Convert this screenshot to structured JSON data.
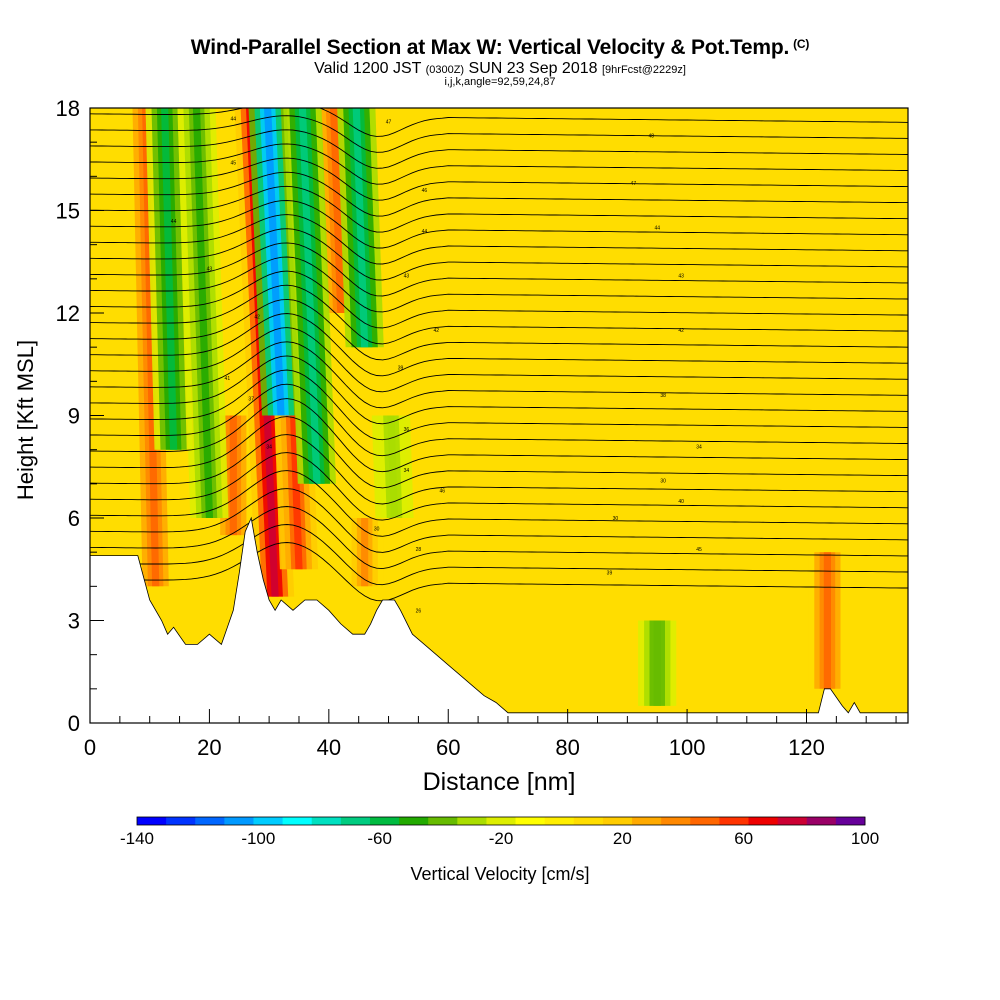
{
  "header": {
    "title": "Wind-Parallel Section at Max W: Vertical Velocity & Pot.Temp.",
    "copyright_mark": "(C)",
    "valid_prefix": "Valid 1200 JST",
    "valid_utc": "(0300Z)",
    "valid_date": "SUN 23 Sep 2018",
    "forecast_info": "[9hrFcst@2229z]",
    "indices": "i,j,k,angle=92,59,24,87"
  },
  "chart_data": {
    "type": "heatmap",
    "title": "Wind-Parallel Section at Max W: Vertical Velocity & Pot.Temp.",
    "xlabel": "Distance [nm]",
    "ylabel": "Height [Kft MSL]",
    "xlim": [
      0,
      137
    ],
    "ylim": [
      0,
      18
    ],
    "x_ticks": [
      0,
      20,
      40,
      60,
      80,
      100,
      120
    ],
    "x_tick_labels": [
      "0",
      "20",
      "40",
      "60",
      "80",
      "100",
      "120"
    ],
    "y_ticks": [
      0,
      3,
      6,
      9,
      12,
      15,
      18
    ],
    "y_tick_labels": [
      "0",
      "3",
      "6",
      "9",
      "12",
      "15",
      "18"
    ],
    "colorbar": {
      "label": "Vertical Velocity [cm/s]",
      "min": -140,
      "max": 100,
      "step": 10,
      "tick_labels": [
        "-140",
        "-100",
        "-60",
        "-20",
        "20",
        "60",
        "100"
      ],
      "colors": [
        "#0000ff",
        "#0033ff",
        "#0066ff",
        "#0099ff",
        "#00ccff",
        "#00ffff",
        "#00e0c0",
        "#00cc80",
        "#00bb40",
        "#22aa00",
        "#66bb00",
        "#aadd00",
        "#ddee00",
        "#ffff00",
        "#ffee00",
        "#ffdd00",
        "#ffcc00",
        "#ffaa00",
        "#ff8800",
        "#ff6600",
        "#ff3300",
        "#ee0000",
        "#cc0033",
        "#990066",
        "#660099"
      ]
    },
    "terrain_kft": [
      [
        0,
        4.9
      ],
      [
        8,
        4.9
      ],
      [
        10,
        3.6
      ],
      [
        12,
        3.0
      ],
      [
        13,
        2.6
      ],
      [
        14,
        2.8
      ],
      [
        16,
        2.3
      ],
      [
        18,
        2.3
      ],
      [
        20,
        2.6
      ],
      [
        22,
        2.3
      ],
      [
        24,
        3.3
      ],
      [
        25,
        4.4
      ],
      [
        26,
        5.6
      ],
      [
        27,
        6.0
      ],
      [
        28,
        5.0
      ],
      [
        29,
        4.2
      ],
      [
        30,
        3.6
      ],
      [
        31,
        3.3
      ],
      [
        32,
        3.6
      ],
      [
        34,
        3.3
      ],
      [
        36,
        3.6
      ],
      [
        38,
        3.6
      ],
      [
        40,
        3.3
      ],
      [
        42,
        2.9
      ],
      [
        44,
        2.6
      ],
      [
        46,
        2.6
      ],
      [
        47,
        2.9
      ],
      [
        48,
        3.3
      ],
      [
        49,
        3.6
      ],
      [
        51,
        3.6
      ],
      [
        52,
        3.3
      ],
      [
        54,
        2.6
      ],
      [
        56,
        2.3
      ],
      [
        58,
        2.0
      ],
      [
        60,
        1.7
      ],
      [
        62,
        1.4
      ],
      [
        64,
        1.1
      ],
      [
        66,
        0.8
      ],
      [
        68,
        0.6
      ],
      [
        70,
        0.3
      ],
      [
        122,
        0.3
      ],
      [
        123,
        1.0
      ],
      [
        124,
        1.0
      ],
      [
        126,
        0.5
      ],
      [
        127,
        0.3
      ],
      [
        128,
        0.6
      ],
      [
        129,
        0.3
      ],
      [
        137,
        0.3
      ]
    ],
    "updrafts": [
      {
        "x": 11,
        "y_bottom": 4,
        "y_top": 18,
        "slope": -0.12,
        "w": 55
      },
      {
        "x": 17,
        "y_bottom": 8,
        "y_top": 18,
        "slope": -0.18,
        "w": 45
      },
      {
        "x": 24,
        "y_bottom": 5.5,
        "y_top": 9,
        "slope": 0,
        "w": 55
      },
      {
        "x": 31,
        "y_bottom": 3.7,
        "y_top": 18,
        "slope": -0.25,
        "w": 85
      },
      {
        "x": 35,
        "y_bottom": 4.5,
        "y_top": 9,
        "slope": -0.2,
        "w": 60
      },
      {
        "x": 42,
        "y_bottom": 12,
        "y_top": 18,
        "slope": -0.2,
        "w": 50
      },
      {
        "x": 46,
        "y_bottom": 4,
        "y_top": 6,
        "slope": 0,
        "w": 40
      },
      {
        "x": 123.5,
        "y_bottom": 1,
        "y_top": 5,
        "slope": 0,
        "w": 50
      }
    ],
    "downdrafts": [
      {
        "x": 14,
        "y_bottom": 8,
        "y_top": 18,
        "slope": -0.15,
        "w": -55
      },
      {
        "x": 20,
        "y_bottom": 6,
        "y_top": 18,
        "slope": -0.18,
        "w": -45
      },
      {
        "x": 32,
        "y_bottom": 9,
        "y_top": 18,
        "slope": -0.25,
        "w": -110
      },
      {
        "x": 38,
        "y_bottom": 7,
        "y_top": 18,
        "slope": -0.22,
        "w": -70
      },
      {
        "x": 46,
        "y_bottom": 11,
        "y_top": 18,
        "slope": -0.2,
        "w": -70
      },
      {
        "x": 51,
        "y_bottom": 6,
        "y_top": 9,
        "slope": -0.2,
        "w": -30
      },
      {
        "x": 95,
        "y_bottom": 0.5,
        "y_top": 3,
        "slope": 0,
        "w": -40
      }
    ],
    "theta_contour_labels": [
      {
        "x": 24,
        "y": 17.7,
        "text": "44"
      },
      {
        "x": 24,
        "y": 16.4,
        "text": "45"
      },
      {
        "x": 14,
        "y": 14.7,
        "text": "44"
      },
      {
        "x": 20,
        "y": 13.3,
        "text": "43"
      },
      {
        "x": 28,
        "y": 11.9,
        "text": "42"
      },
      {
        "x": 23,
        "y": 10.1,
        "text": "41"
      },
      {
        "x": 27,
        "y": 9.5,
        "text": "37"
      },
      {
        "x": 30,
        "y": 8.1,
        "text": "34"
      },
      {
        "x": 50,
        "y": 17.6,
        "text": "47"
      },
      {
        "x": 56,
        "y": 15.6,
        "text": "46"
      },
      {
        "x": 56,
        "y": 14.4,
        "text": "44"
      },
      {
        "x": 53,
        "y": 13.1,
        "text": "43"
      },
      {
        "x": 58,
        "y": 11.5,
        "text": "42"
      },
      {
        "x": 52,
        "y": 10.4,
        "text": "39"
      },
      {
        "x": 53,
        "y": 8.6,
        "text": "36"
      },
      {
        "x": 53,
        "y": 7.4,
        "text": "34"
      },
      {
        "x": 59,
        "y": 6.8,
        "text": "46"
      },
      {
        "x": 48,
        "y": 5.7,
        "text": "30"
      },
      {
        "x": 55,
        "y": 5.1,
        "text": "28"
      },
      {
        "x": 55,
        "y": 3.3,
        "text": "26"
      },
      {
        "x": 94,
        "y": 17.2,
        "text": "48"
      },
      {
        "x": 91,
        "y": 15.8,
        "text": "47"
      },
      {
        "x": 95,
        "y": 14.5,
        "text": "44"
      },
      {
        "x": 99,
        "y": 13.1,
        "text": "43"
      },
      {
        "x": 99,
        "y": 11.5,
        "text": "42"
      },
      {
        "x": 96,
        "y": 9.6,
        "text": "38"
      },
      {
        "x": 102,
        "y": 8.1,
        "text": "34"
      },
      {
        "x": 96,
        "y": 7.1,
        "text": "30"
      },
      {
        "x": 99,
        "y": 6.5,
        "text": "40"
      },
      {
        "x": 88,
        "y": 6.0,
        "text": "30"
      },
      {
        "x": 102,
        "y": 5.1,
        "text": "45"
      },
      {
        "x": 87,
        "y": 4.4,
        "text": "39"
      }
    ]
  }
}
